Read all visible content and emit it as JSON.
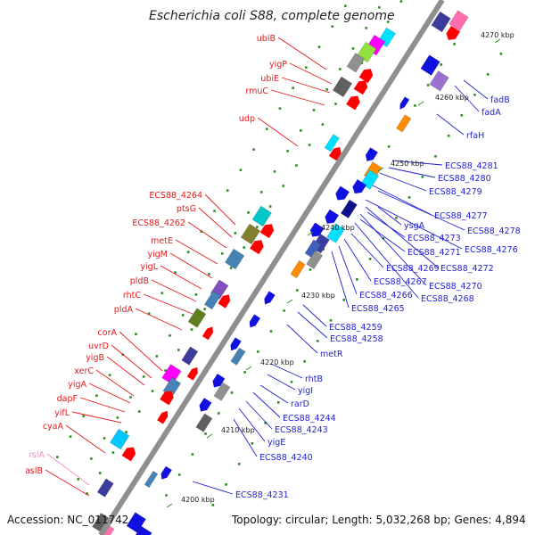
{
  "title": "Escherichia coli S88, complete genome",
  "footer": {
    "accession": "Accession: NC_011742",
    "topology": "Topology: circular; Length: 5,032,268 bp; Genes: 4,894"
  },
  "kbp_labels": [
    "4270 kbp",
    "4260 kbp",
    "4250 kbp",
    "4240 kbp",
    "4230 kbp",
    "4220 kbp",
    "4210 kbp",
    "4200 kbp"
  ],
  "left_labels": [
    "ubiB",
    "yigP",
    "ubiE",
    "rmuC",
    "udp",
    "ECS88_4264",
    "ptsG",
    "ECS88_4262",
    "metE",
    "yigM",
    "yigL",
    "pldB",
    "rhtC",
    "pldA",
    "corA",
    "uvrD",
    "yigB",
    "xerC",
    "yigA",
    "dapF",
    "yifL",
    "cyaA",
    "rsiA",
    "aslB"
  ],
  "right_labels": [
    "fadB",
    "fadA",
    "rfaH",
    "ECS88_4281",
    "ECS88_4280",
    "ECS88_4279",
    "ECS88_4277",
    "ysgA",
    "ECS88_4278",
    "ECS88_4273",
    "ECS88_4276",
    "ECS88_4271",
    "ECS88_4269",
    "ECS88_4272",
    "ECS88_4267",
    "ECS88_4270",
    "ECS88_4266",
    "ECS88_4268",
    "ECS88_4265",
    "ECS88_4259",
    "ECS88_4258",
    "metR",
    "rhtB",
    "yigI",
    "rarD",
    "ECS88_4244",
    "ECS88_4243",
    "yigE",
    "ECS88_4240",
    "ECS88_4231"
  ],
  "colors": {
    "backbone": "#8f8f8f",
    "forward_label": "#e41a1c",
    "reverse_label": "#1f1fd1",
    "rna_label": "#f08cc0",
    "tick_dots": "#2e8b22"
  }
}
